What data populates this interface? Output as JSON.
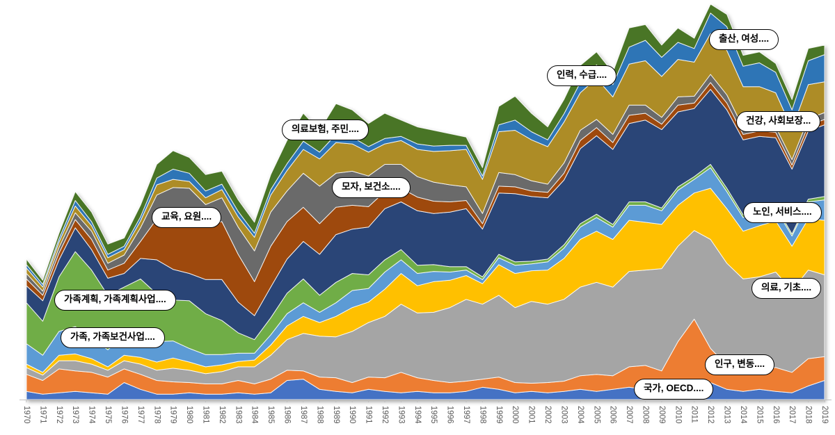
{
  "chart_data": {
    "type": "area",
    "stacked": true,
    "title": "",
    "xlabel": "",
    "ylabel": "",
    "legend_position": "none (series labeled via callout bubbles)",
    "grid": false,
    "x_axis": {
      "tick_label_color": "#595959",
      "axis_line_color": "#BFBFBF",
      "tick_label_rotation": 90
    },
    "categories": [
      "1970",
      "1971",
      "1972",
      "1973",
      "1974",
      "1975",
      "1976",
      "1977",
      "1978",
      "1979",
      "1980",
      "1981",
      "1982",
      "1983",
      "1984",
      "1985",
      "1986",
      "1987",
      "1988",
      "1989",
      "1990",
      "1991",
      "1992",
      "1993",
      "1994",
      "1995",
      "1996",
      "1997",
      "1998",
      "1999",
      "2000",
      "2001",
      "2002",
      "2003",
      "2004",
      "2005",
      "2006",
      "2007",
      "2008",
      "2009",
      "2010",
      "2011",
      "2012",
      "2013",
      "2014",
      "2015",
      "2016",
      "2017",
      "2018",
      "2019"
    ],
    "series": [
      {
        "name": "국가, OECD....",
        "color": "#4472C4",
        "values": [
          12,
          8,
          10,
          12,
          10,
          8,
          25,
          15,
          8,
          8,
          10,
          8,
          8,
          10,
          8,
          10,
          28,
          30,
          15,
          12,
          10,
          15,
          12,
          10,
          12,
          10,
          10,
          12,
          18,
          15,
          10,
          12,
          10,
          12,
          15,
          12,
          15,
          18,
          15,
          12,
          25,
          28,
          25,
          15,
          12,
          15,
          12,
          10,
          20,
          28
        ]
      },
      {
        "name": "인구, 변동....",
        "color": "#ED7D31",
        "values": [
          25,
          20,
          35,
          30,
          30,
          25,
          20,
          22,
          20,
          18,
          15,
          15,
          15,
          18,
          15,
          20,
          15,
          12,
          18,
          20,
          15,
          18,
          20,
          30,
          20,
          18,
          15,
          15,
          12,
          18,
          15,
          12,
          15,
          15,
          20,
          25,
          20,
          30,
          35,
          30,
          60,
          90,
          50,
          35,
          25,
          30,
          35,
          30,
          40,
          35
        ]
      },
      {
        "name": "의료, 기초....",
        "color": "#A5A5A5",
        "values": [
          10,
          8,
          12,
          15,
          12,
          10,
          12,
          15,
          15,
          20,
          18,
          15,
          18,
          20,
          25,
          35,
          45,
          55,
          60,
          60,
          75,
          80,
          90,
          100,
          95,
          100,
          110,
          120,
          110,
          120,
          110,
          120,
          115,
          120,
          130,
          135,
          130,
          140,
          140,
          150,
          140,
          130,
          160,
          150,
          140,
          135,
          140,
          120,
          130,
          120
        ]
      },
      {
        "name": "노인, 서비스....",
        "color": "#FFC000",
        "values": [
          5,
          4,
          8,
          10,
          8,
          5,
          8,
          10,
          12,
          15,
          12,
          10,
          10,
          8,
          10,
          15,
          20,
          25,
          20,
          30,
          35,
          30,
          40,
          45,
          40,
          45,
          40,
          35,
          30,
          45,
          50,
          45,
          50,
          60,
          70,
          75,
          70,
          75,
          70,
          65,
          60,
          55,
          75,
          80,
          70,
          75,
          75,
          65,
          75,
          80
        ]
      },
      {
        "name": "가족, 가족보건사업....",
        "color": "#5B9BD5",
        "values": [
          30,
          25,
          35,
          40,
          30,
          25,
          30,
          35,
          30,
          25,
          20,
          18,
          15,
          12,
          10,
          15,
          18,
          20,
          15,
          20,
          25,
          20,
          25,
          20,
          18,
          15,
          12,
          8,
          6,
          10,
          12,
          10,
          12,
          15,
          18,
          20,
          18,
          22,
          25,
          20,
          22,
          20,
          30,
          25,
          20,
          22,
          18,
          15,
          25,
          30
        ]
      },
      {
        "name": "가족계획, 가족계획사업....",
        "color": "#70AD47",
        "values": [
          60,
          50,
          80,
          110,
          100,
          80,
          70,
          80,
          70,
          60,
          70,
          60,
          50,
          30,
          20,
          25,
          30,
          35,
          25,
          30,
          25,
          20,
          18,
          15,
          12,
          10,
          8,
          5,
          4,
          5,
          5,
          4,
          4,
          5,
          5,
          5,
          4,
          5,
          5,
          4,
          5,
          4,
          5,
          5,
          4,
          4,
          4,
          3,
          4,
          5
        ]
      },
      {
        "name": "건강, 사회보장...",
        "color": "#2C4577",
        "values": [
          25,
          30,
          25,
          35,
          30,
          25,
          20,
          30,
          50,
          45,
          40,
          50,
          60,
          45,
          35,
          45,
          50,
          55,
          60,
          70,
          65,
          70,
          75,
          70,
          80,
          75,
          80,
          85,
          70,
          90,
          100,
          95,
          90,
          95,
          110,
          115,
          110,
          115,
          120,
          115,
          110,
          100,
          110,
          115,
          110,
          105,
          100,
          95,
          100,
          105
        ]
      },
      {
        "name": "모자, 보건소....",
        "color": "#9E480E",
        "values": [
          10,
          8,
          10,
          12,
          15,
          12,
          15,
          25,
          60,
          80,
          90,
          80,
          85,
          70,
          50,
          60,
          55,
          50,
          45,
          40,
          35,
          30,
          25,
          20,
          20,
          18,
          15,
          12,
          8,
          10,
          10,
          8,
          8,
          10,
          12,
          12,
          10,
          12,
          10,
          8,
          10,
          8,
          10,
          10,
          8,
          8,
          8,
          6,
          8,
          8
        ]
      },
      {
        "name": "의료보험, 주민....",
        "color": "#6B6B6B",
        "values": [
          8,
          6,
          8,
          10,
          12,
          10,
          12,
          20,
          35,
          40,
          35,
          30,
          35,
          40,
          45,
          50,
          45,
          50,
          55,
          50,
          50,
          45,
          40,
          35,
          30,
          28,
          25,
          20,
          15,
          20,
          18,
          15,
          12,
          15,
          15,
          12,
          12,
          15,
          12,
          10,
          12,
          10,
          12,
          12,
          10,
          10,
          8,
          8,
          10,
          10
        ]
      },
      {
        "name": "교육, 요원....",
        "color": "#AD8C28",
        "values": [
          8,
          6,
          8,
          10,
          8,
          8,
          8,
          10,
          15,
          12,
          10,
          10,
          12,
          15,
          20,
          25,
          30,
          35,
          40,
          45,
          40,
          35,
          30,
          35,
          40,
          45,
          50,
          55,
          50,
          60,
          65,
          60,
          55,
          60,
          55,
          60,
          55,
          60,
          65,
          60,
          55,
          50,
          60,
          65,
          60,
          55,
          50,
          45,
          50,
          45
        ]
      },
      {
        "name": "인력, 수급....",
        "color": "#2E75B6",
        "values": [
          5,
          4,
          5,
          8,
          6,
          5,
          5,
          6,
          10,
          15,
          12,
          10,
          8,
          8,
          6,
          8,
          10,
          12,
          10,
          12,
          10,
          8,
          8,
          6,
          8,
          8,
          8,
          6,
          5,
          10,
          15,
          12,
          10,
          12,
          15,
          20,
          18,
          25,
          30,
          28,
          25,
          20,
          30,
          35,
          30,
          35,
          30,
          28,
          35,
          40
        ]
      },
      {
        "name": "출산, 여성....",
        "color": "#4A7528",
        "values": [
          8,
          6,
          8,
          13,
          14,
          15,
          12,
          17,
          20,
          27,
          23,
          24,
          19,
          17,
          16,
          22,
          34,
          41,
          32,
          45,
          40,
          34,
          37,
          24,
          25,
          23,
          17,
          12,
          12,
          27,
          35,
          27,
          19,
          21,
          25,
          19,
          18,
          28,
          23,
          18,
          21,
          15,
          13,
          18,
          16,
          16,
          13,
          15,
          18,
          14
        ]
      }
    ]
  },
  "callouts": [
    {
      "label": "국가, OECD...."
    },
    {
      "label": "인구, 변동...."
    },
    {
      "label": "의료, 기초...."
    },
    {
      "label": "노인, 서비스...."
    },
    {
      "label": "가족, 가족보건사업...."
    },
    {
      "label": "가족계획, 가족계획사업...."
    },
    {
      "label": "건강, 사회보장..."
    },
    {
      "label": "모자, 보건소...."
    },
    {
      "label": "의료보험, 주민...."
    },
    {
      "label": "교육, 요원...."
    },
    {
      "label": "인력, 수급...."
    },
    {
      "label": "출산, 여성...."
    }
  ]
}
